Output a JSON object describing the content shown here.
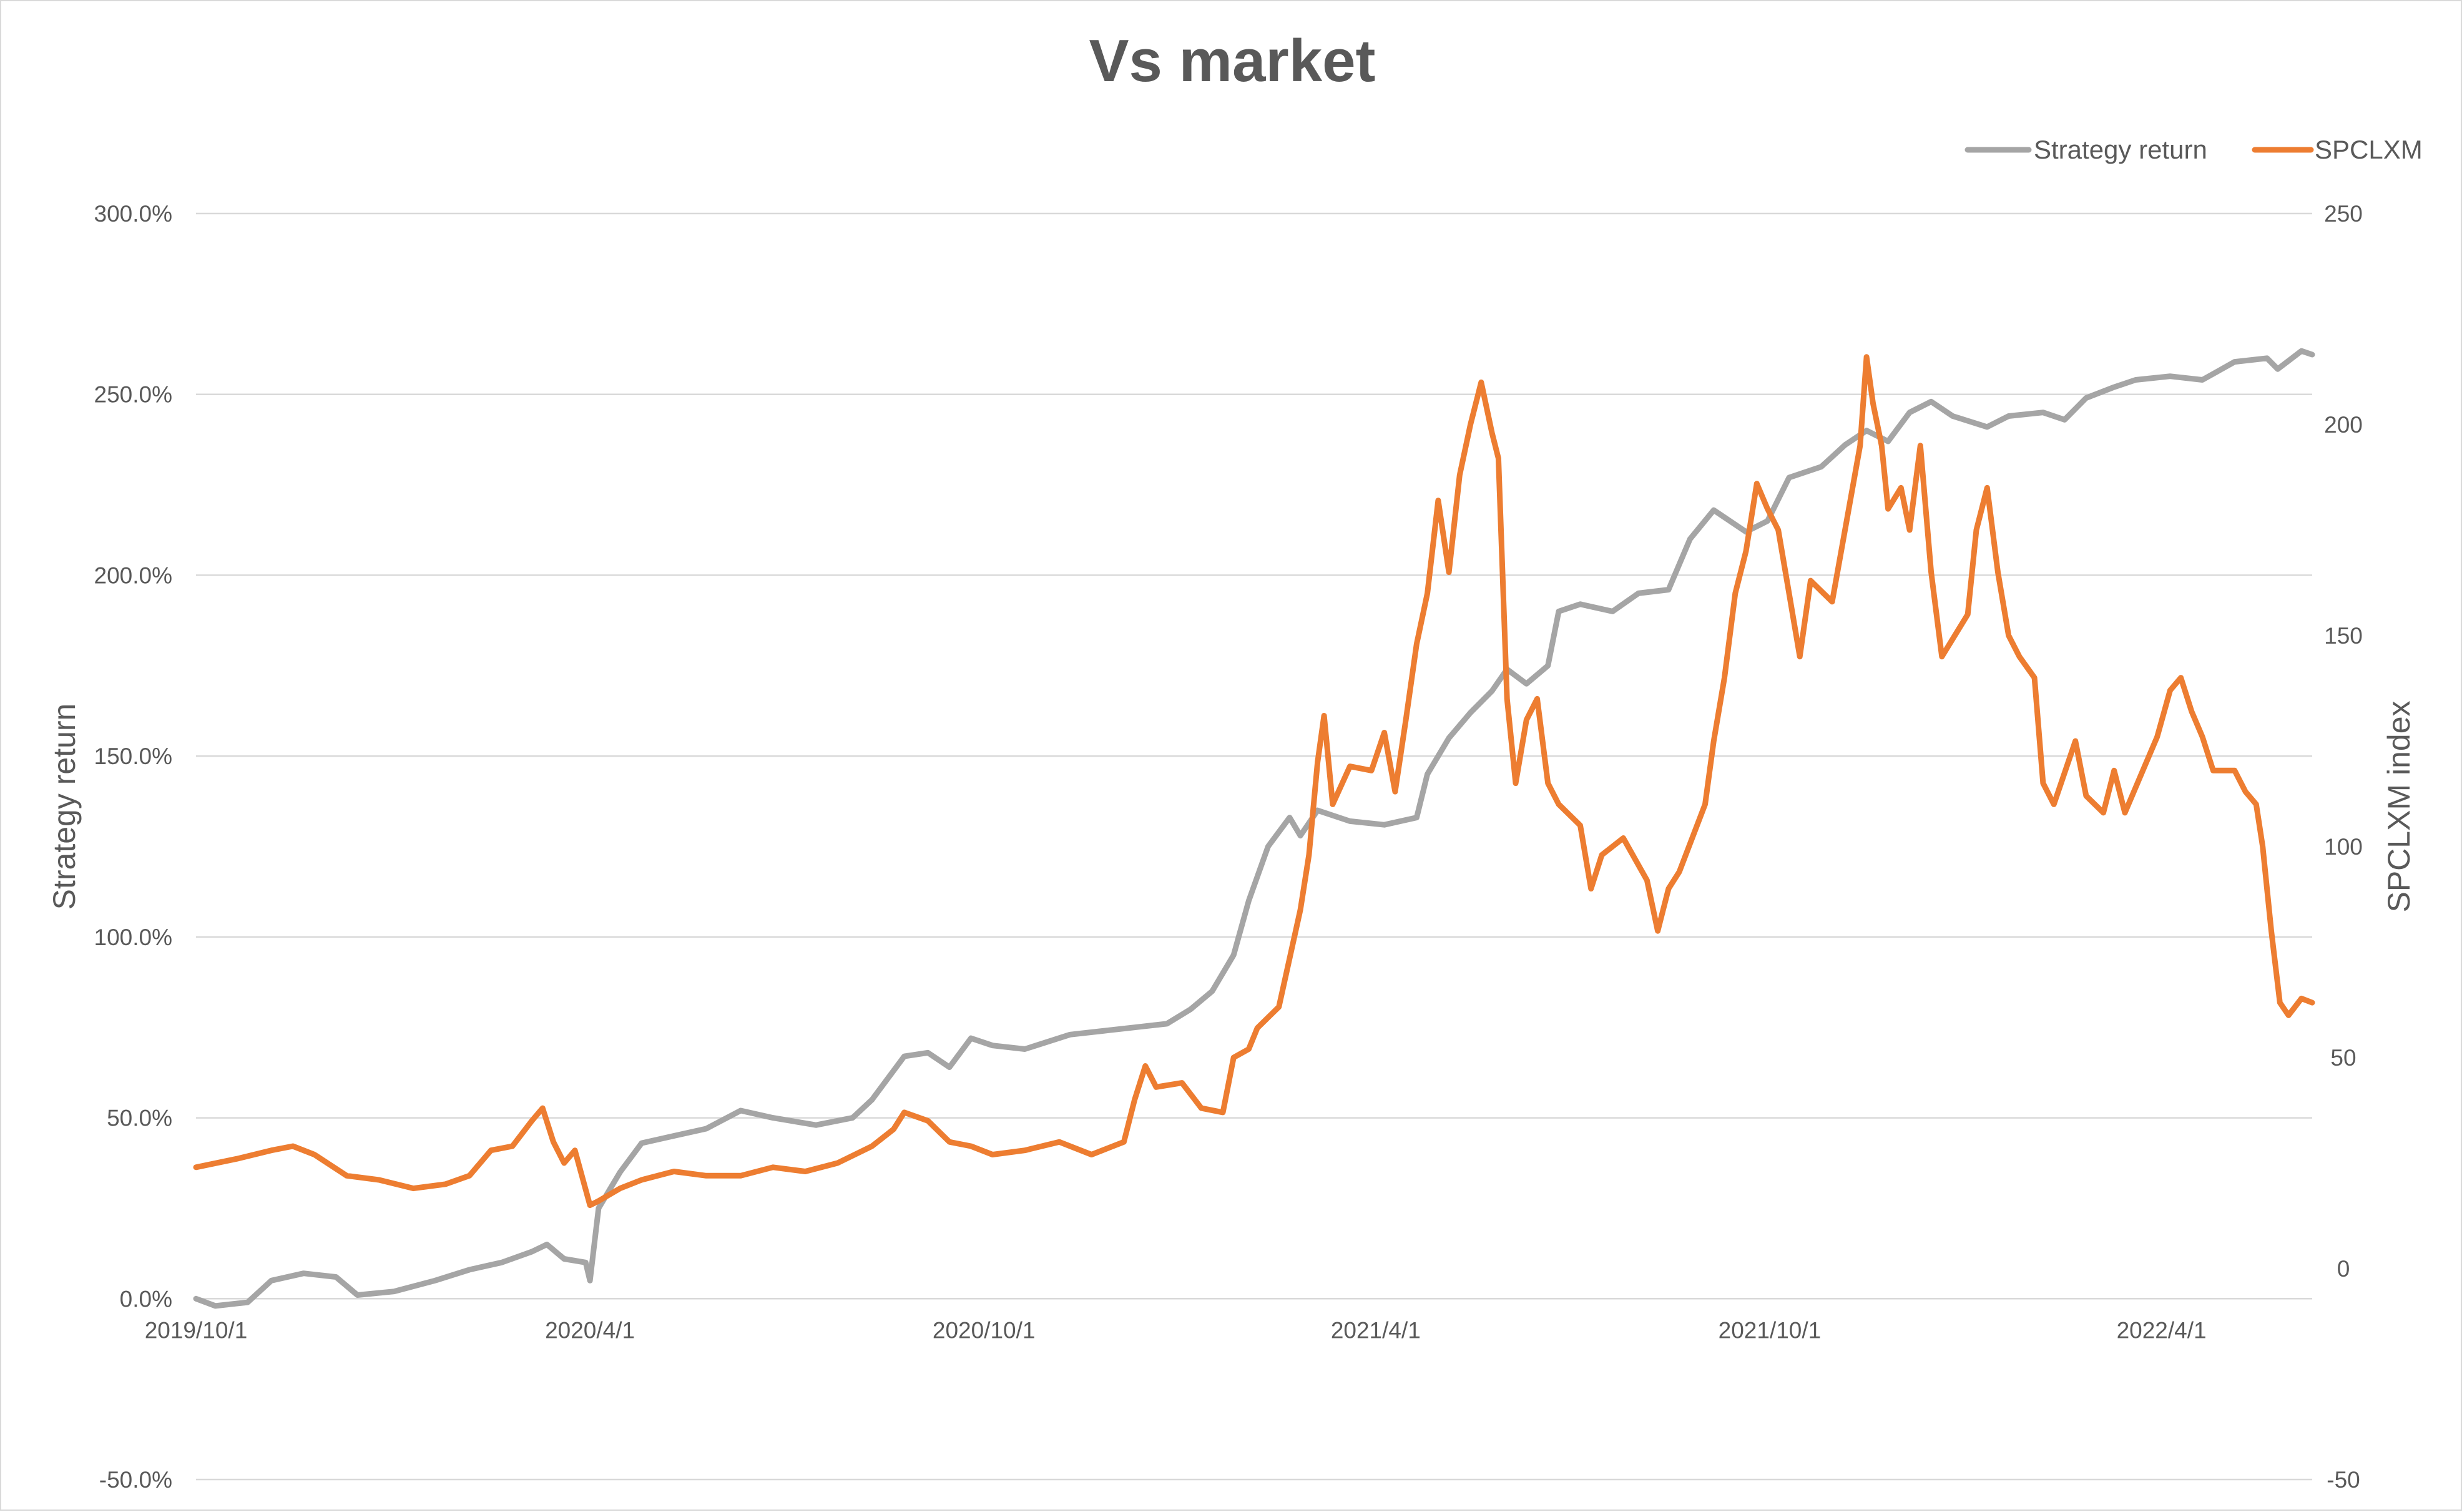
{
  "chart_data": {
    "type": "line",
    "title": "Vs market",
    "legend": {
      "position": "top-right",
      "entries": [
        "Strategy return",
        "SPCLXM"
      ]
    },
    "x_axis": {
      "type": "date",
      "range": [
        "2019-10-01",
        "2022-06-10"
      ],
      "tick_labels": [
        "2019/10/1",
        "2020/4/1",
        "2020/10/1",
        "2021/4/1",
        "2021/10/1",
        "2022/4/1"
      ],
      "tick_dates": [
        "2019-10-01",
        "2020-04-01",
        "2020-10-01",
        "2021-04-01",
        "2021-10-01",
        "2022-04-01"
      ]
    },
    "y_axis_left": {
      "label": "Strategy return",
      "min": -0.5,
      "max": 3.0,
      "step": 0.5,
      "tick_labels": [
        "-50.0%",
        "0.0%",
        "50.0%",
        "100.0%",
        "150.0%",
        "200.0%",
        "250.0%",
        "300.0%"
      ]
    },
    "y_axis_right": {
      "label": "SPCLXM index",
      "min": -50,
      "max": 250,
      "step": 50,
      "tick_labels": [
        "-50",
        "0",
        "50",
        "100",
        "150",
        "200",
        "250"
      ]
    },
    "grid": true,
    "colors": {
      "Strategy return": "#a5a5a5",
      "SPCLXM": "#ed7d31"
    },
    "series": [
      {
        "name": "Strategy return",
        "axis": "left",
        "color": "#a5a5a5",
        "points": [
          [
            "2019-10-01",
            0.0
          ],
          [
            "2019-10-10",
            -0.02
          ],
          [
            "2019-10-25",
            -0.01
          ],
          [
            "2019-11-05",
            0.05
          ],
          [
            "2019-11-20",
            0.07
          ],
          [
            "2019-12-05",
            0.06
          ],
          [
            "2019-12-15",
            0.01
          ],
          [
            "2020-01-01",
            0.02
          ],
          [
            "2020-01-20",
            0.05
          ],
          [
            "2020-02-05",
            0.08
          ],
          [
            "2020-02-20",
            0.1
          ],
          [
            "2020-03-05",
            0.13
          ],
          [
            "2020-03-12",
            0.15
          ],
          [
            "2020-03-20",
            0.11
          ],
          [
            "2020-03-30",
            0.1
          ],
          [
            "2020-04-01",
            0.05
          ],
          [
            "2020-04-05",
            0.25
          ],
          [
            "2020-04-15",
            0.35
          ],
          [
            "2020-04-25",
            0.43
          ],
          [
            "2020-05-10",
            0.45
          ],
          [
            "2020-05-25",
            0.47
          ],
          [
            "2020-06-10",
            0.52
          ],
          [
            "2020-06-25",
            0.5
          ],
          [
            "2020-07-15",
            0.48
          ],
          [
            "2020-08-01",
            0.5
          ],
          [
            "2020-08-10",
            0.55
          ],
          [
            "2020-08-25",
            0.67
          ],
          [
            "2020-09-05",
            0.68
          ],
          [
            "2020-09-15",
            0.64
          ],
          [
            "2020-09-25",
            0.72
          ],
          [
            "2020-10-05",
            0.7
          ],
          [
            "2020-10-20",
            0.69
          ],
          [
            "2020-11-10",
            0.73
          ],
          [
            "2020-11-25",
            0.74
          ],
          [
            "2020-12-10",
            0.75
          ],
          [
            "2020-12-25",
            0.76
          ],
          [
            "2021-01-05",
            0.8
          ],
          [
            "2021-01-15",
            0.85
          ],
          [
            "2021-01-25",
            0.95
          ],
          [
            "2021-02-01",
            1.1
          ],
          [
            "2021-02-10",
            1.25
          ],
          [
            "2021-02-20",
            1.33
          ],
          [
            "2021-02-25",
            1.28
          ],
          [
            "2021-03-05",
            1.35
          ],
          [
            "2021-03-20",
            1.32
          ],
          [
            "2021-04-05",
            1.31
          ],
          [
            "2021-04-20",
            1.33
          ],
          [
            "2021-04-25",
            1.45
          ],
          [
            "2021-05-05",
            1.55
          ],
          [
            "2021-05-15",
            1.62
          ],
          [
            "2021-05-25",
            1.68
          ],
          [
            "2021-06-01",
            1.74
          ],
          [
            "2021-06-10",
            1.7
          ],
          [
            "2021-06-20",
            1.75
          ],
          [
            "2021-06-25",
            1.9
          ],
          [
            "2021-07-05",
            1.92
          ],
          [
            "2021-07-20",
            1.9
          ],
          [
            "2021-08-01",
            1.95
          ],
          [
            "2021-08-15",
            1.96
          ],
          [
            "2021-08-25",
            2.1
          ],
          [
            "2021-09-05",
            2.18
          ],
          [
            "2021-09-20",
            2.12
          ],
          [
            "2021-09-30",
            2.15
          ],
          [
            "2021-10-10",
            2.27
          ],
          [
            "2021-10-25",
            2.3
          ],
          [
            "2021-11-05",
            2.36
          ],
          [
            "2021-11-15",
            2.4
          ],
          [
            "2021-11-25",
            2.37
          ],
          [
            "2021-12-05",
            2.45
          ],
          [
            "2021-12-15",
            2.48
          ],
          [
            "2021-12-25",
            2.44
          ],
          [
            "2022-01-10",
            2.41
          ],
          [
            "2022-01-20",
            2.44
          ],
          [
            "2022-02-05",
            2.45
          ],
          [
            "2022-02-15",
            2.43
          ],
          [
            "2022-02-25",
            2.49
          ],
          [
            "2022-03-10",
            2.52
          ],
          [
            "2022-03-20",
            2.54
          ],
          [
            "2022-04-05",
            2.55
          ],
          [
            "2022-04-20",
            2.54
          ],
          [
            "2022-05-05",
            2.59
          ],
          [
            "2022-05-20",
            2.6
          ],
          [
            "2022-05-25",
            2.57
          ],
          [
            "2022-06-05",
            2.62
          ],
          [
            "2022-06-10",
            2.61
          ]
        ]
      },
      {
        "name": "SPCLXM",
        "axis": "right",
        "color": "#ed7d31",
        "points": [
          [
            "2019-10-01",
            24
          ],
          [
            "2019-10-20",
            26
          ],
          [
            "2019-11-05",
            28
          ],
          [
            "2019-11-15",
            29
          ],
          [
            "2019-11-25",
            27
          ],
          [
            "2019-12-10",
            22
          ],
          [
            "2019-12-25",
            21
          ],
          [
            "2020-01-10",
            19
          ],
          [
            "2020-01-25",
            20
          ],
          [
            "2020-02-05",
            22
          ],
          [
            "2020-02-15",
            28
          ],
          [
            "2020-02-25",
            29
          ],
          [
            "2020-03-05",
            35
          ],
          [
            "2020-03-10",
            38
          ],
          [
            "2020-03-15",
            30
          ],
          [
            "2020-03-20",
            25
          ],
          [
            "2020-03-25",
            28
          ],
          [
            "2020-04-01",
            15
          ],
          [
            "2020-04-05",
            16
          ],
          [
            "2020-04-15",
            19
          ],
          [
            "2020-04-25",
            21
          ],
          [
            "2020-05-10",
            23
          ],
          [
            "2020-05-25",
            22
          ],
          [
            "2020-06-10",
            22
          ],
          [
            "2020-06-25",
            24
          ],
          [
            "2020-07-10",
            23
          ],
          [
            "2020-07-25",
            25
          ],
          [
            "2020-08-10",
            29
          ],
          [
            "2020-08-20",
            33
          ],
          [
            "2020-08-25",
            37
          ],
          [
            "2020-09-05",
            35
          ],
          [
            "2020-09-15",
            30
          ],
          [
            "2020-09-25",
            29
          ],
          [
            "2020-10-05",
            27
          ],
          [
            "2020-10-20",
            28
          ],
          [
            "2020-11-05",
            30
          ],
          [
            "2020-11-20",
            27
          ],
          [
            "2020-12-05",
            30
          ],
          [
            "2020-12-10",
            40
          ],
          [
            "2020-12-15",
            48
          ],
          [
            "2020-12-20",
            43
          ],
          [
            "2021-01-01",
            44
          ],
          [
            "2021-01-10",
            38
          ],
          [
            "2021-01-20",
            37
          ],
          [
            "2021-01-25",
            50
          ],
          [
            "2021-02-01",
            52
          ],
          [
            "2021-02-05",
            57
          ],
          [
            "2021-02-15",
            62
          ],
          [
            "2021-02-25",
            85
          ],
          [
            "2021-03-01",
            98
          ],
          [
            "2021-03-05",
            120
          ],
          [
            "2021-03-08",
            131
          ],
          [
            "2021-03-12",
            110
          ],
          [
            "2021-03-20",
            119
          ],
          [
            "2021-03-30",
            118
          ],
          [
            "2021-04-05",
            127
          ],
          [
            "2021-04-10",
            113
          ],
          [
            "2021-04-15",
            130
          ],
          [
            "2021-04-20",
            148
          ],
          [
            "2021-04-25",
            160
          ],
          [
            "2021-04-30",
            182
          ],
          [
            "2021-05-05",
            165
          ],
          [
            "2021-05-10",
            188
          ],
          [
            "2021-05-15",
            200
          ],
          [
            "2021-05-20",
            210
          ],
          [
            "2021-05-25",
            198
          ],
          [
            "2021-05-28",
            192
          ],
          [
            "2021-06-01",
            135
          ],
          [
            "2021-06-05",
            115
          ],
          [
            "2021-06-10",
            130
          ],
          [
            "2021-06-15",
            135
          ],
          [
            "2021-06-20",
            115
          ],
          [
            "2021-06-25",
            110
          ],
          [
            "2021-07-05",
            105
          ],
          [
            "2021-07-10",
            90
          ],
          [
            "2021-07-15",
            98
          ],
          [
            "2021-07-25",
            102
          ],
          [
            "2021-08-05",
            92
          ],
          [
            "2021-08-10",
            80
          ],
          [
            "2021-08-15",
            90
          ],
          [
            "2021-08-20",
            94
          ],
          [
            "2021-09-01",
            110
          ],
          [
            "2021-09-05",
            125
          ],
          [
            "2021-09-10",
            140
          ],
          [
            "2021-09-15",
            160
          ],
          [
            "2021-09-20",
            170
          ],
          [
            "2021-09-25",
            186
          ],
          [
            "2021-09-30",
            180
          ],
          [
            "2021-10-05",
            175
          ],
          [
            "2021-10-10",
            160
          ],
          [
            "2021-10-15",
            145
          ],
          [
            "2021-10-20",
            163
          ],
          [
            "2021-10-30",
            158
          ],
          [
            "2021-11-05",
            175
          ],
          [
            "2021-11-12",
            195
          ],
          [
            "2021-11-15",
            216
          ],
          [
            "2021-11-18",
            205
          ],
          [
            "2021-11-22",
            195
          ],
          [
            "2021-11-25",
            180
          ],
          [
            "2021-12-01",
            185
          ],
          [
            "2021-12-05",
            175
          ],
          [
            "2021-12-10",
            195
          ],
          [
            "2021-12-15",
            165
          ],
          [
            "2021-12-20",
            145
          ],
          [
            "2022-01-01",
            155
          ],
          [
            "2022-01-05",
            175
          ],
          [
            "2022-01-10",
            185
          ],
          [
            "2022-01-15",
            165
          ],
          [
            "2022-01-20",
            150
          ],
          [
            "2022-01-25",
            145
          ],
          [
            "2022-02-01",
            140
          ],
          [
            "2022-02-05",
            115
          ],
          [
            "2022-02-10",
            110
          ],
          [
            "2022-02-20",
            125
          ],
          [
            "2022-02-25",
            112
          ],
          [
            "2022-03-05",
            108
          ],
          [
            "2022-03-10",
            118
          ],
          [
            "2022-03-15",
            108
          ],
          [
            "2022-03-20",
            114
          ],
          [
            "2022-03-30",
            126
          ],
          [
            "2022-04-05",
            137
          ],
          [
            "2022-04-10",
            140
          ],
          [
            "2022-04-15",
            132
          ],
          [
            "2022-04-20",
            126
          ],
          [
            "2022-04-25",
            118
          ],
          [
            "2022-05-05",
            118
          ],
          [
            "2022-05-10",
            113
          ],
          [
            "2022-05-15",
            110
          ],
          [
            "2022-05-18",
            100
          ],
          [
            "2022-05-22",
            80
          ],
          [
            "2022-05-26",
            63
          ],
          [
            "2022-05-30",
            60
          ],
          [
            "2022-06-05",
            64
          ],
          [
            "2022-06-10",
            63
          ]
        ]
      }
    ]
  }
}
